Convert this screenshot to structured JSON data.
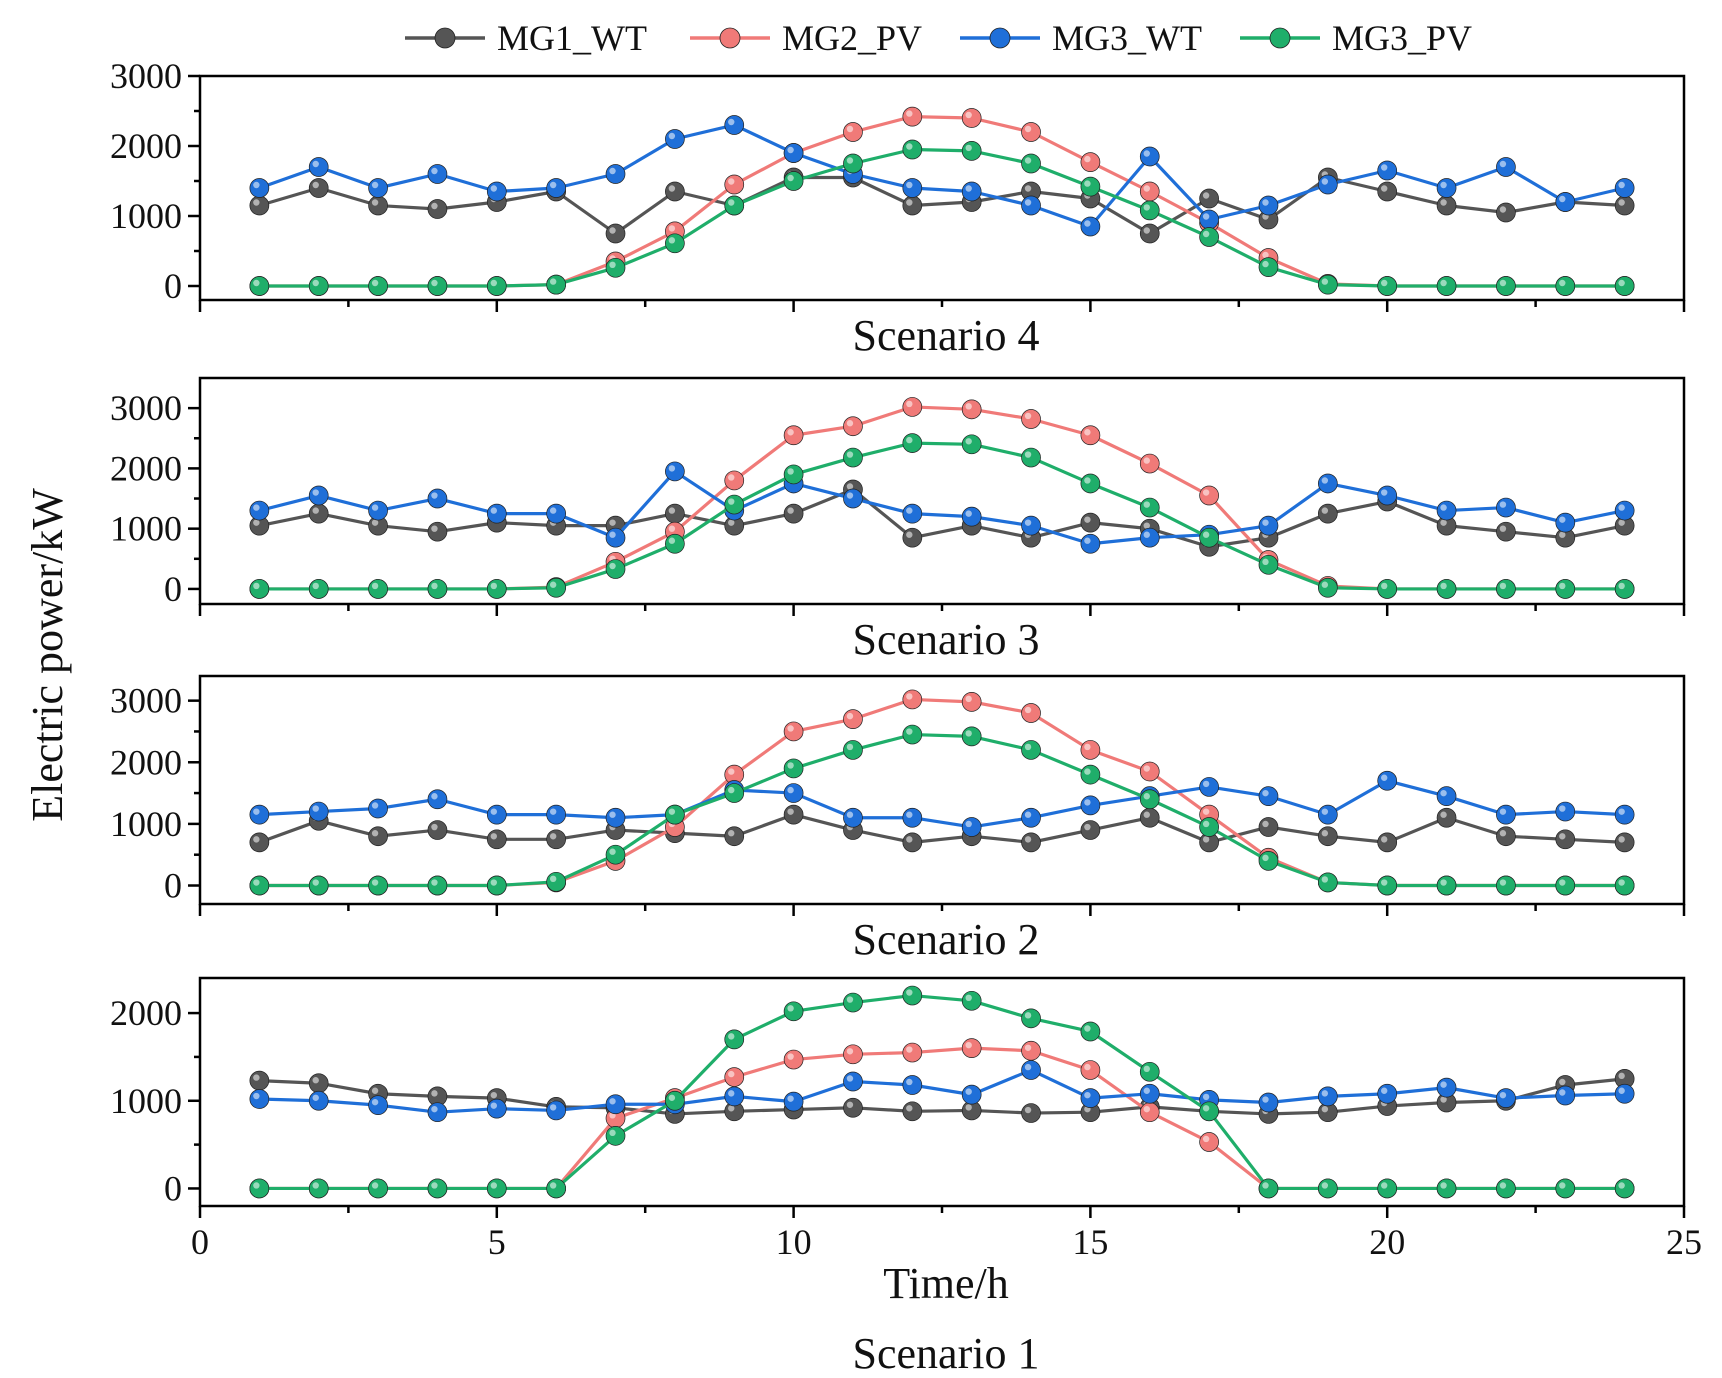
{
  "chart_data": {
    "type": "line",
    "ylabel": "Electric power/kW",
    "xlabel": "Time/h",
    "xlim": [
      0,
      25
    ],
    "x_ticks": [
      0,
      5,
      10,
      15,
      20,
      25
    ],
    "legend": [
      {
        "name": "MG1_WT",
        "color": "#555555"
      },
      {
        "name": "MG2_PV",
        "color": "#f07a78"
      },
      {
        "name": "MG3_WT",
        "color": "#1f6fd8"
      },
      {
        "name": "MG3_PV",
        "color": "#1fae6a"
      }
    ],
    "x": [
      1,
      2,
      3,
      4,
      5,
      6,
      7,
      8,
      9,
      10,
      11,
      12,
      13,
      14,
      15,
      16,
      17,
      18,
      19,
      20,
      21,
      22,
      23,
      24
    ],
    "panels": [
      {
        "title": "Scenario 4",
        "ylim": [
          -200,
          3000
        ],
        "y_ticks": [
          0,
          1000,
          2000,
          3000
        ],
        "series": [
          {
            "name": "MG1_WT",
            "values": [
              1150,
              1400,
              1150,
              1100,
              1200,
              1350,
              750,
              1350,
              1150,
              1550,
              1550,
              1150,
              1200,
              1350,
              1250,
              750,
              1250,
              950,
              1550,
              1350,
              1150,
              1050,
              1200,
              1150
            ]
          },
          {
            "name": "MG2_PV",
            "values": [
              0,
              0,
              0,
              0,
              0,
              20,
              350,
              780,
              1450,
              1900,
              2200,
              2420,
              2400,
              2200,
              1770,
              1350,
              900,
              400,
              30,
              0,
              0,
              0,
              0,
              0
            ]
          },
          {
            "name": "MG3_WT",
            "values": [
              1400,
              1700,
              1400,
              1600,
              1350,
              1400,
              1600,
              2100,
              2300,
              1900,
              1600,
              1400,
              1350,
              1150,
              850,
              1850,
              950,
              1150,
              1450,
              1650,
              1400,
              1700,
              1200,
              1400
            ]
          },
          {
            "name": "MG3_PV",
            "values": [
              0,
              0,
              0,
              0,
              0,
              20,
              260,
              610,
              1150,
              1500,
              1750,
              1950,
              1930,
              1750,
              1420,
              1080,
              700,
              270,
              20,
              0,
              0,
              0,
              0,
              0
            ]
          }
        ]
      },
      {
        "title": "Scenario 3",
        "ylim": [
          -250,
          3500
        ],
        "y_ticks": [
          0,
          1000,
          2000,
          3000
        ],
        "series": [
          {
            "name": "MG1_WT",
            "values": [
              1050,
              1250,
              1050,
              950,
              1100,
              1050,
              1050,
              1250,
              1050,
              1250,
              1650,
              850,
              1050,
              850,
              1100,
              1000,
              700,
              850,
              1250,
              1450,
              1050,
              950,
              850,
              1050
            ]
          },
          {
            "name": "MG2_PV",
            "values": [
              0,
              0,
              0,
              0,
              0,
              30,
              450,
              950,
              1800,
              2550,
              2700,
              3020,
              2980,
              2820,
              2550,
              2080,
              1550,
              480,
              50,
              0,
              0,
              0,
              0,
              0
            ]
          },
          {
            "name": "MG3_WT",
            "values": [
              1300,
              1550,
              1300,
              1500,
              1250,
              1250,
              850,
              1950,
              1300,
              1750,
              1500,
              1250,
              1200,
              1050,
              750,
              850,
              900,
              1050,
              1750,
              1550,
              1300,
              1350,
              1100,
              1300
            ]
          },
          {
            "name": "MG3_PV",
            "values": [
              0,
              0,
              0,
              0,
              0,
              20,
              330,
              750,
              1400,
              1900,
              2180,
              2420,
              2400,
              2180,
              1750,
              1350,
              850,
              400,
              20,
              0,
              0,
              0,
              0,
              0
            ]
          }
        ]
      },
      {
        "title": "Scenario 2",
        "ylim": [
          -300,
          3400
        ],
        "y_ticks": [
          0,
          1000,
          2000,
          3000
        ],
        "series": [
          {
            "name": "MG1_WT",
            "values": [
              700,
              1050,
              800,
              900,
              750,
              750,
              900,
              850,
              800,
              1150,
              900,
              700,
              800,
              700,
              900,
              1100,
              700,
              950,
              800,
              700,
              1100,
              800,
              750,
              700
            ]
          },
          {
            "name": "MG2_PV",
            "values": [
              0,
              0,
              0,
              0,
              0,
              50,
              400,
              950,
              1800,
              2500,
              2700,
              3020,
              2980,
              2800,
              2200,
              1850,
              1150,
              450,
              50,
              0,
              0,
              0,
              0,
              0
            ]
          },
          {
            "name": "MG3_WT",
            "values": [
              1150,
              1200,
              1250,
              1400,
              1150,
              1150,
              1100,
              1150,
              1550,
              1500,
              1100,
              1100,
              950,
              1100,
              1300,
              1450,
              1600,
              1450,
              1150,
              1700,
              1450,
              1150,
              1200,
              1150
            ]
          },
          {
            "name": "MG3_PV",
            "values": [
              0,
              0,
              0,
              0,
              0,
              60,
              500,
              1150,
              1500,
              1900,
              2200,
              2450,
              2420,
              2200,
              1800,
              1400,
              950,
              400,
              50,
              0,
              0,
              0,
              0,
              0
            ]
          }
        ]
      },
      {
        "title": "Scenario 1",
        "ylim": [
          -200,
          2400
        ],
        "y_ticks": [
          0,
          1000,
          2000
        ],
        "series": [
          {
            "name": "MG1_WT",
            "values": [
              1230,
              1200,
              1080,
              1050,
              1030,
              930,
              920,
              850,
              880,
              900,
              920,
              880,
              890,
              860,
              870,
              930,
              880,
              850,
              870,
              940,
              980,
              1000,
              1180,
              1250
            ]
          },
          {
            "name": "MG2_PV",
            "values": [
              0,
              0,
              0,
              0,
              0,
              0,
              800,
              1030,
              1270,
              1470,
              1530,
              1550,
              1600,
              1570,
              1350,
              870,
              530,
              0,
              0,
              0,
              0,
              0,
              0,
              0
            ]
          },
          {
            "name": "MG3_WT",
            "values": [
              1020,
              1000,
              950,
              870,
              910,
              890,
              960,
              960,
              1050,
              990,
              1220,
              1180,
              1070,
              1350,
              1030,
              1080,
              1010,
              980,
              1050,
              1080,
              1150,
              1030,
              1060,
              1080
            ]
          },
          {
            "name": "MG3_PV",
            "values": [
              0,
              0,
              0,
              0,
              0,
              0,
              600,
              1000,
              1700,
              2020,
              2120,
              2200,
              2140,
              1940,
              1790,
              1330,
              880,
              0,
              0,
              0,
              0,
              0,
              0,
              0
            ]
          }
        ]
      }
    ]
  }
}
